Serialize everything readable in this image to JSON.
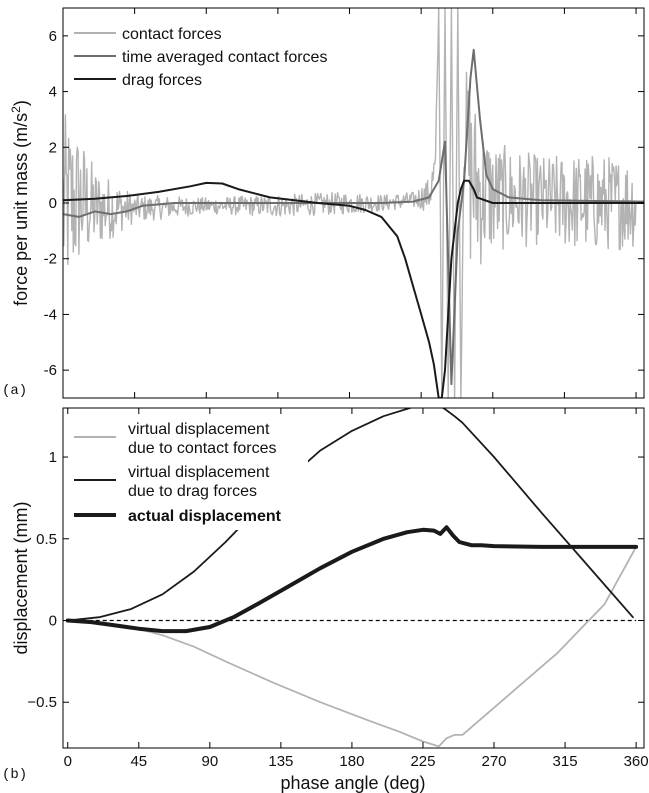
{
  "chart_data": [
    {
      "type": "line",
      "panel_label": "(a)",
      "title": "",
      "xlabel": "",
      "ylabel": "force per unit mass (m/s",
      "ylabel_sup": "2",
      "ylabel_close": ")",
      "xlim": [
        0,
        365
      ],
      "ylim": [
        -7,
        7
      ],
      "xticks": [
        "0",
        "45",
        "90",
        "135",
        "180",
        "225",
        "270",
        "315",
        "360"
      ],
      "yticks": [
        "6",
        "4",
        "2",
        "0",
        "-2",
        "-4",
        "-6"
      ],
      "legend_position": "top-left",
      "colors": {
        "contact": "#b3b3b3",
        "averaged": "#6e6e6e",
        "drag": "#1a1a1a"
      },
      "series": [
        {
          "name": "contact forces",
          "noisy": true,
          "x": [
            0,
            10,
            20,
            45,
            90,
            135,
            180,
            200,
            220,
            230,
            234,
            236,
            238,
            240,
            242,
            244,
            246,
            248,
            250,
            252,
            256,
            260,
            270,
            300,
            330,
            365
          ],
          "y": [
            -0.2,
            0.1,
            -0.2,
            -0.2,
            -0.1,
            -0.1,
            0,
            0,
            0.1,
            0.3,
            1.2,
            7,
            -7,
            7,
            -7,
            7,
            -7,
            7,
            -7,
            3,
            1,
            0.5,
            0.2,
            0.1,
            0,
            0
          ],
          "amp": [
            3.5,
            2.5,
            1.5,
            0.5,
            0.3,
            0.4,
            0.4,
            0.3,
            0.3,
            0.6,
            1,
            0,
            0,
            0,
            0,
            0,
            0,
            0,
            0,
            2,
            3.5,
            3,
            2,
            1.6,
            1.8,
            1.6
          ]
        },
        {
          "name": "time averaged contact forces",
          "x": [
            0,
            10,
            20,
            30,
            40,
            50,
            70,
            90,
            135,
            180,
            200,
            220,
            230,
            236,
            240,
            244,
            248,
            252,
            256,
            258,
            262,
            266,
            270,
            280,
            300,
            365
          ],
          "y": [
            -0.4,
            -0.5,
            -0.3,
            -0.4,
            -0.3,
            -0.1,
            0,
            0,
            0,
            0,
            0,
            0.05,
            0.2,
            0.8,
            2.2,
            -6.5,
            -1,
            0.8,
            4.5,
            5.5,
            3,
            1,
            0.5,
            0.2,
            0.1,
            0.05
          ]
        },
        {
          "name": "drag forces",
          "x": [
            0,
            20,
            40,
            60,
            80,
            90,
            100,
            110,
            130,
            160,
            180,
            190,
            200,
            210,
            215,
            220,
            225,
            230,
            233,
            236,
            238,
            240,
            242,
            244,
            246,
            248,
            250,
            252,
            255,
            258,
            260,
            270,
            300,
            330,
            365
          ],
          "y": [
            0.1,
            0.15,
            0.25,
            0.4,
            0.6,
            0.72,
            0.7,
            0.5,
            0.2,
            0,
            -0.1,
            -0.25,
            -0.5,
            -1.2,
            -2,
            -3,
            -4,
            -5,
            -5.8,
            -7,
            -7,
            -6,
            -4,
            -2,
            -1,
            0,
            0.5,
            0.8,
            0.8,
            0.5,
            0.2,
            0,
            0,
            0,
            0
          ]
        }
      ]
    },
    {
      "type": "line",
      "panel_label": "(b)",
      "title": "",
      "xlabel": "phase angle (deg)",
      "ylabel": "displacement (mm)",
      "xlim": [
        -3,
        365
      ],
      "ylim": [
        -0.78,
        1.3
      ],
      "xticks": [
        "0",
        "45",
        "90",
        "135",
        "180",
        "225",
        "270",
        "315",
        "360"
      ],
      "yticks": [
        "1",
        "0.5",
        "0",
        "−0.5"
      ],
      "legend_position": "top-left",
      "colors": {
        "contact": "#b3b3b3",
        "drag": "#1a1a1a",
        "actual": "#1a1a1a",
        "zero": "#000000"
      },
      "series": [
        {
          "name_lines": [
            "virtual displacement",
            "due to contact forces"
          ],
          "x": [
            0,
            20,
            40,
            60,
            80,
            100,
            130,
            160,
            190,
            210,
            225,
            235,
            240,
            245,
            250,
            280,
            310,
            340,
            360
          ],
          "y": [
            0,
            -0.01,
            -0.04,
            -0.09,
            -0.16,
            -0.25,
            -0.38,
            -0.5,
            -0.61,
            -0.68,
            -0.74,
            -0.77,
            -0.72,
            -0.7,
            -0.7,
            -0.45,
            -0.2,
            0.1,
            0.45
          ]
        },
        {
          "name_lines": [
            "virtual displacement",
            "due to drag forces"
          ],
          "x": [
            0,
            20,
            40,
            60,
            80,
            100,
            120,
            140,
            160,
            180,
            200,
            220,
            230,
            238,
            245,
            250,
            270,
            300,
            330,
            358
          ],
          "y": [
            0,
            0.02,
            0.07,
            0.16,
            0.3,
            0.48,
            0.68,
            0.87,
            1.04,
            1.16,
            1.25,
            1.31,
            1.32,
            1.3,
            1.25,
            1.21,
            1.0,
            0.66,
            0.33,
            0.02
          ]
        },
        {
          "name_lines": [
            "actual displacement"
          ],
          "x": [
            0,
            15,
            30,
            45,
            60,
            75,
            90,
            105,
            120,
            140,
            160,
            180,
            200,
            215,
            225,
            232,
            236,
            240,
            244,
            248,
            252,
            256,
            262,
            270,
            300,
            330,
            360
          ],
          "y": [
            0,
            -0.01,
            -0.03,
            -0.05,
            -0.065,
            -0.065,
            -0.04,
            0.02,
            0.1,
            0.21,
            0.32,
            0.42,
            0.5,
            0.54,
            0.555,
            0.55,
            0.53,
            0.57,
            0.52,
            0.48,
            0.47,
            0.46,
            0.46,
            0.455,
            0.45,
            0.45,
            0.45
          ]
        }
      ]
    }
  ]
}
